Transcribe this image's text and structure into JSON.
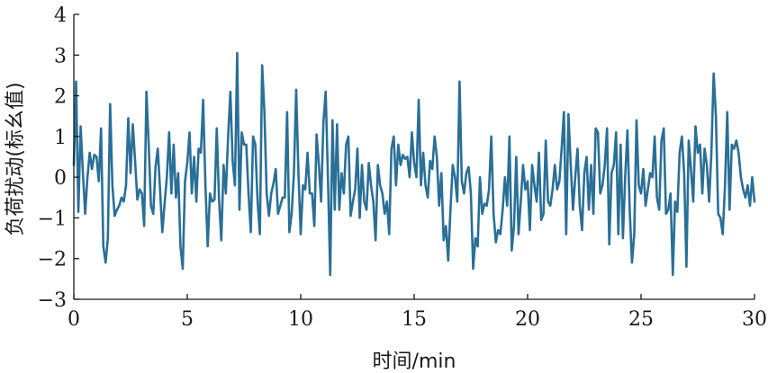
{
  "chart_data": {
    "type": "line",
    "title": "",
    "xlabel": "时间/min",
    "ylabel": "负荷扰动(标幺值)",
    "xlim": [
      0,
      30
    ],
    "ylim": [
      -3,
      4
    ],
    "xticks": [
      0,
      5,
      10,
      15,
      20,
      25,
      30
    ],
    "yticks": [
      -3,
      -2,
      -1,
      0,
      1,
      2,
      3,
      4
    ],
    "grid": false,
    "legend": "none",
    "colors": {
      "series": "#2a6f97",
      "axis": "#1a1a1a"
    },
    "series": [
      {
        "x": [
          0.0,
          0.1,
          0.2,
          0.3,
          0.4,
          0.5,
          0.6,
          0.7,
          0.8,
          0.9,
          1.0,
          1.1,
          1.2,
          1.3,
          1.4,
          1.5,
          1.6,
          1.7,
          1.8,
          1.9,
          2.0,
          2.1,
          2.2,
          2.3,
          2.4,
          2.5,
          2.6,
          2.7,
          2.8,
          2.9,
          3.0,
          3.1,
          3.2,
          3.3,
          3.4,
          3.5,
          3.6,
          3.7,
          3.8,
          3.9,
          4.0,
          4.1,
          4.2,
          4.3,
          4.4,
          4.5,
          4.6,
          4.7,
          4.8,
          4.9,
          5.0,
          5.1,
          5.2,
          5.3,
          5.4,
          5.5,
          5.6,
          5.7,
          5.8,
          5.9,
          6.0,
          6.1,
          6.2,
          6.3,
          6.4,
          6.5,
          6.6,
          6.7,
          6.8,
          6.9,
          7.0,
          7.1,
          7.2,
          7.3,
          7.4,
          7.5,
          7.6,
          7.7,
          7.8,
          7.9,
          8.0,
          8.1,
          8.2,
          8.3,
          8.4,
          8.5,
          8.6,
          8.7,
          8.8,
          8.9,
          9.0,
          9.1,
          9.2,
          9.3,
          9.4,
          9.5,
          9.6,
          9.7,
          9.8,
          9.9,
          10.0,
          10.1,
          10.2,
          10.3,
          10.4,
          10.5,
          10.6,
          10.7,
          10.8,
          10.9,
          11.0,
          11.1,
          11.2,
          11.3,
          11.4,
          11.5,
          11.6,
          11.7,
          11.8,
          11.9,
          12.0,
          12.1,
          12.2,
          12.3,
          12.4,
          12.5,
          12.6,
          12.7,
          12.8,
          12.9,
          13.0,
          13.1,
          13.2,
          13.3,
          13.4,
          13.5,
          13.6,
          13.7,
          13.8,
          13.9,
          14.0,
          14.1,
          14.2,
          14.3,
          14.4,
          14.5,
          14.6,
          14.7,
          14.8,
          14.9,
          15.0,
          15.1,
          15.2,
          15.3,
          15.4,
          15.5,
          15.6,
          15.7,
          15.8,
          15.9,
          16.0,
          16.1,
          16.2,
          16.3,
          16.4,
          16.5,
          16.6,
          16.7,
          16.8,
          16.9,
          17.0,
          17.1,
          17.2,
          17.3,
          17.4,
          17.5,
          17.6,
          17.7,
          17.8,
          17.9,
          18.0,
          18.1,
          18.2,
          18.3,
          18.4,
          18.5,
          18.6,
          18.7,
          18.8,
          18.9,
          19.0,
          19.1,
          19.2,
          19.3,
          19.4,
          19.5,
          19.6,
          19.7,
          19.8,
          19.9,
          20.0,
          20.1,
          20.2,
          20.3,
          20.4,
          20.5,
          20.6,
          20.7,
          20.8,
          20.9,
          21.0,
          21.1,
          21.2,
          21.3,
          21.4,
          21.5,
          21.6,
          21.7,
          21.8,
          21.9,
          22.0,
          22.1,
          22.2,
          22.3,
          22.4,
          22.5,
          22.6,
          22.7,
          22.8,
          22.9,
          23.0,
          23.1,
          23.2,
          23.3,
          23.4,
          23.5,
          23.6,
          23.7,
          23.8,
          23.9,
          24.0,
          24.1,
          24.2,
          24.3,
          24.4,
          24.5,
          24.6,
          24.7,
          24.8,
          24.9,
          25.0,
          25.1,
          25.2,
          25.3,
          25.4,
          25.5,
          25.6,
          25.7,
          25.8,
          25.9,
          26.0,
          26.1,
          26.2,
          26.3,
          26.4,
          26.5,
          26.6,
          26.7,
          26.8,
          26.9,
          27.0,
          27.1,
          27.2,
          27.3,
          27.4,
          27.5,
          27.6,
          27.7,
          27.8,
          27.9,
          28.0,
          28.1,
          28.2,
          28.3,
          28.4,
          28.5,
          28.6,
          28.7,
          28.8,
          28.9,
          29.0,
          29.1,
          29.2,
          29.3,
          29.4,
          29.5,
          29.6,
          29.7,
          29.8,
          29.9,
          30.0
        ],
        "values": [
          0.3,
          2.35,
          -0.85,
          1.25,
          0.1,
          -0.9,
          0.0,
          0.6,
          0.2,
          0.55,
          0.5,
          -0.1,
          1.2,
          -1.7,
          -2.1,
          -1.5,
          1.8,
          -0.2,
          -0.95,
          -0.8,
          -0.7,
          -0.5,
          -0.6,
          -0.2,
          1.45,
          0.1,
          1.3,
          0.4,
          -0.55,
          -0.3,
          -0.4,
          -1.2,
          2.1,
          0.8,
          -0.7,
          -0.9,
          0.25,
          0.7,
          -0.3,
          -1.35,
          -0.65,
          0.0,
          1.1,
          -0.4,
          0.8,
          -0.5,
          0.1,
          -1.7,
          -2.25,
          -0.1,
          0.35,
          1.1,
          -0.4,
          0.5,
          -0.6,
          0.7,
          0.6,
          1.9,
          -0.2,
          -1.7,
          -0.4,
          -0.6,
          -0.55,
          1.2,
          -0.55,
          -1.55,
          0.3,
          -0.4,
          1.0,
          2.1,
          0.4,
          -0.2,
          3.05,
          -0.8,
          1.1,
          0.8,
          0.8,
          -0.4,
          -1.35,
          1.0,
          0.8,
          -0.6,
          -1.4,
          2.75,
          1.6,
          -0.4,
          -0.95,
          -0.4,
          -0.15,
          0.2,
          -0.9,
          -0.7,
          -0.5,
          -0.5,
          1.6,
          -1.35,
          -0.9,
          0.1,
          2.15,
          0.1,
          -1.4,
          -0.2,
          -0.3,
          0.6,
          -0.4,
          -0.4,
          -1.2,
          1.05,
          0.3,
          -0.6,
          1.35,
          2.1,
          0.0,
          -2.4,
          1.4,
          -0.8,
          1.3,
          -0.8,
          0.1,
          -0.4,
          0.8,
          1.0,
          -0.95,
          -0.6,
          -0.3,
          0.7,
          -1.0,
          0.3,
          -0.6,
          -0.8,
          0.35,
          -0.2,
          -0.6,
          -1.55,
          0.3,
          -0.2,
          -0.4,
          -0.9,
          -0.6,
          -1.4,
          0.7,
          1.0,
          -0.2,
          0.8,
          0.3,
          0.55,
          0.45,
          0.5,
          0.0,
          1.1,
          0.35,
          0.0,
          1.9,
          -0.2,
          0.6,
          -0.2,
          -0.5,
          0.4,
          0.2,
          1.0,
          0.5,
          -0.7,
          0.1,
          -1.55,
          -1.2,
          -2.05,
          -0.8,
          0.3,
          0.0,
          -0.6,
          2.35,
          -0.1,
          -0.4,
          0.1,
          0.25,
          -0.4,
          -2.25,
          -1.5,
          -1.7,
          0.0,
          -0.9,
          -0.65,
          -0.7,
          -0.3,
          1.0,
          -0.9,
          -1.6,
          -1.3,
          -1.4,
          -0.8,
          0.0,
          -0.7,
          1.0,
          -1.8,
          -1.2,
          0.5,
          -1.4,
          -0.6,
          0.3,
          -0.3,
          -0.1,
          -1.3,
          0.3,
          -0.2,
          -0.6,
          0.6,
          -1.05,
          -0.9,
          0.9,
          -0.6,
          -0.7,
          -0.3,
          0.3,
          -0.3,
          -0.1,
          0.7,
          1.6,
          -1.4,
          1.55,
          0.3,
          -0.8,
          0.0,
          0.7,
          -0.7,
          -1.3,
          0.1,
          0.5,
          -0.8,
          0.3,
          -0.9,
          1.2,
          1.1,
          -0.4,
          -0.2,
          0.3,
          1.2,
          -1.65,
          0.1,
          0.3,
          1.1,
          -1.4,
          0.8,
          -1.5,
          0.0,
          1.15,
          -0.8,
          -2.1,
          -1.4,
          1.4,
          -0.2,
          -0.4,
          0.2,
          -0.7,
          -0.3,
          0.1,
          0.0,
          1.0,
          -0.5,
          -0.8,
          0.9,
          1.2,
          -0.9,
          -0.8,
          -0.4,
          -2.4,
          -0.6,
          -0.85,
          0.6,
          1.0,
          0.1,
          -2.2,
          0.9,
          0.2,
          -0.6,
          1.25,
          0.6,
          0.8,
          -0.4,
          0.7,
          0.3,
          -0.6,
          0.6,
          2.55,
          1.5,
          -0.9,
          -1.0,
          -1.4,
          -0.2,
          1.6,
          -0.8,
          0.8,
          0.7,
          0.9,
          0.6,
          0.0,
          -0.3,
          -0.5,
          -0.2,
          -0.7,
          0.0,
          -0.6
        ]
      }
    ]
  }
}
